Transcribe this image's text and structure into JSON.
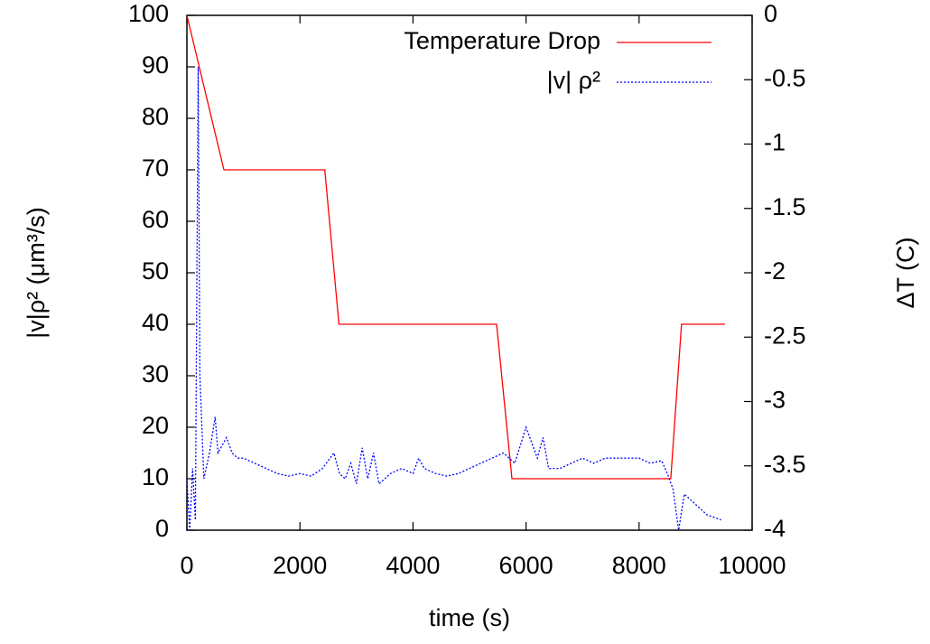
{
  "chart_data": {
    "type": "line",
    "x_label": "time (s)",
    "y_label": "|v|ρ² (μm³/s)",
    "y2_label": "ΔT (C)",
    "xlim": [
      0,
      10000
    ],
    "xticks": [
      0,
      2000,
      4000,
      6000,
      8000,
      10000
    ],
    "ylim": [
      0,
      100
    ],
    "yticks": [
      0,
      10,
      20,
      30,
      40,
      50,
      60,
      70,
      80,
      90,
      100
    ],
    "y2lim": [
      -4,
      0
    ],
    "y2ticks": [
      -4,
      -3.5,
      -3,
      -2.5,
      -2,
      -1.5,
      -1,
      -0.5,
      0
    ],
    "legend": "upper-right",
    "series": [
      {
        "name": "Temperature Drop",
        "color": "#ff0000",
        "axis": "y2",
        "dash": "solid",
        "x": [
          0,
          655,
          2440,
          2690,
          5480,
          5750,
          8560,
          8750,
          9520
        ],
        "values": [
          0,
          -1.2,
          -1.2,
          -2.4,
          -2.4,
          -3.6,
          -3.6,
          -2.4,
          -2.4
        ]
      },
      {
        "name": "|v| ρ²",
        "color": "#0000ff",
        "axis": "y",
        "dash": "dotted",
        "x": [
          0,
          50,
          100,
          150,
          200,
          230,
          300,
          400,
          500,
          550,
          600,
          700,
          800,
          900,
          1000,
          1200,
          1400,
          1600,
          1800,
          2000,
          2200,
          2400,
          2600,
          2700,
          2800,
          2900,
          3000,
          3100,
          3200,
          3300,
          3400,
          3600,
          3800,
          4000,
          4100,
          4200,
          4400,
          4600,
          4800,
          5000,
          5200,
          5400,
          5600,
          5800,
          6000,
          6100,
          6200,
          6300,
          6400,
          6600,
          6800,
          7000,
          7200,
          7400,
          7600,
          7800,
          8000,
          8200,
          8400,
          8500,
          8600,
          8700,
          8800,
          9000,
          9200,
          9450
        ],
        "values": [
          10,
          0,
          12,
          2,
          90,
          30,
          10,
          15,
          22,
          15,
          16,
          18,
          15,
          14,
          14,
          13,
          12,
          11,
          10.5,
          11,
          10.5,
          12,
          15,
          11,
          10,
          13,
          9,
          16,
          10,
          15,
          9,
          11,
          12,
          11,
          14,
          12,
          11,
          10.5,
          11,
          12,
          13,
          14,
          15,
          13,
          20,
          17,
          14,
          18,
          12,
          12,
          13,
          14,
          13,
          14,
          14,
          14,
          14,
          13,
          13.5,
          11,
          8,
          0,
          7,
          5,
          3,
          2
        ]
      }
    ]
  }
}
